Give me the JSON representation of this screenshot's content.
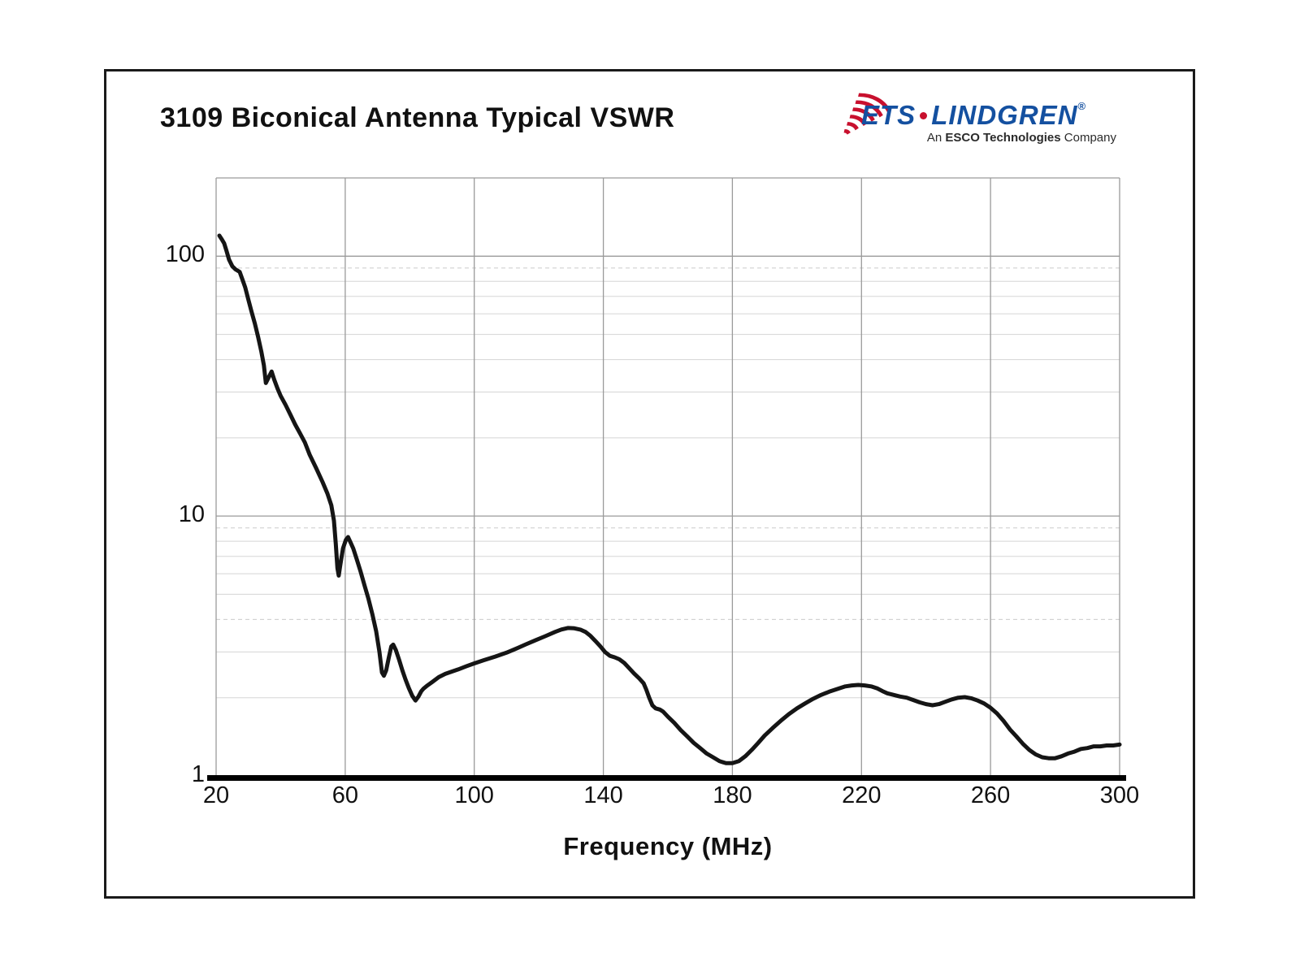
{
  "logo": {
    "brand_primary": "ETS",
    "brand_secondary": "LINDGREN",
    "registered_mark": "®",
    "tagline_prefix": "An ",
    "tagline_bold": "ESCO Technologies",
    "tagline_suffix": " Company",
    "brand_color": "#1450a0",
    "arc_color": "#c8102e"
  },
  "chart_data": {
    "type": "line",
    "title": "3109 Biconical Antenna Typical VSWR",
    "xlabel": "Frequency (MHz)",
    "ylabel": "",
    "xlim": [
      20,
      300
    ],
    "x_ticks": [
      20,
      60,
      100,
      140,
      180,
      220,
      260,
      300
    ],
    "y_scale": "log",
    "ylim": [
      1,
      200
    ],
    "y_ticks": [
      1,
      10,
      100
    ],
    "y_minor": [
      2,
      3,
      4,
      5,
      6,
      7,
      8,
      9,
      20,
      30,
      40,
      50,
      60,
      70,
      80,
      90
    ],
    "y_minor_dashed": [
      4,
      9,
      90
    ],
    "grid": true,
    "legend": "none",
    "line_color": "#151515",
    "series": [
      {
        "name": "Typical VSWR",
        "points": [
          [
            21,
            120
          ],
          [
            21.8,
            116
          ],
          [
            22.5,
            112
          ],
          [
            23.2,
            105
          ],
          [
            24,
            97
          ],
          [
            25,
            91.5
          ],
          [
            26,
            89
          ],
          [
            27.3,
            87
          ],
          [
            28.2,
            81
          ],
          [
            29,
            76
          ],
          [
            30,
            68
          ],
          [
            31,
            61
          ],
          [
            32,
            55
          ],
          [
            33,
            49
          ],
          [
            34,
            43
          ],
          [
            34.8,
            38
          ],
          [
            35.4,
            32.5
          ],
          [
            36.2,
            34
          ],
          [
            37.2,
            36
          ],
          [
            38,
            33.5
          ],
          [
            39,
            31
          ],
          [
            40,
            29
          ],
          [
            41.5,
            26.8
          ],
          [
            43,
            24.6
          ],
          [
            44.5,
            22.5
          ],
          [
            46,
            20.8
          ],
          [
            47.5,
            19.2
          ],
          [
            49,
            17.2
          ],
          [
            51,
            15.3
          ],
          [
            53,
            13.5
          ],
          [
            54.5,
            12.2
          ],
          [
            55.7,
            11
          ],
          [
            56.5,
            9.6
          ],
          [
            57.1,
            7.8
          ],
          [
            57.6,
            6.3
          ],
          [
            58,
            5.9
          ],
          [
            58.5,
            6.5
          ],
          [
            59.3,
            7.5
          ],
          [
            60.2,
            8.1
          ],
          [
            60.9,
            8.3
          ],
          [
            61.7,
            7.9
          ],
          [
            62.5,
            7.5
          ],
          [
            63.6,
            6.8
          ],
          [
            64.8,
            6.1
          ],
          [
            66,
            5.4
          ],
          [
            67.2,
            4.8
          ],
          [
            68.4,
            4.2
          ],
          [
            69.6,
            3.6
          ],
          [
            70.6,
            3.0
          ],
          [
            71.4,
            2.5
          ],
          [
            72,
            2.43
          ],
          [
            72.7,
            2.55
          ],
          [
            73.5,
            2.85
          ],
          [
            74.3,
            3.15
          ],
          [
            74.9,
            3.2
          ],
          [
            75.7,
            3.05
          ],
          [
            76.7,
            2.8
          ],
          [
            77.7,
            2.55
          ],
          [
            78.7,
            2.35
          ],
          [
            79.7,
            2.18
          ],
          [
            80.8,
            2.03
          ],
          [
            81.8,
            1.95
          ],
          [
            82.7,
            2.02
          ],
          [
            83.6,
            2.12
          ],
          [
            84.3,
            2.17
          ],
          [
            85.5,
            2.23
          ],
          [
            87,
            2.3
          ],
          [
            89,
            2.4
          ],
          [
            91,
            2.47
          ],
          [
            93,
            2.52
          ],
          [
            95,
            2.57
          ],
          [
            97.5,
            2.64
          ],
          [
            100,
            2.71
          ],
          [
            103,
            2.79
          ],
          [
            106.5,
            2.88
          ],
          [
            110,
            2.98
          ],
          [
            113,
            3.09
          ],
          [
            116,
            3.21
          ],
          [
            119,
            3.33
          ],
          [
            122,
            3.45
          ],
          [
            125,
            3.58
          ],
          [
            127,
            3.66
          ],
          [
            129,
            3.71
          ],
          [
            131,
            3.7
          ],
          [
            133,
            3.65
          ],
          [
            134.5,
            3.58
          ],
          [
            136,
            3.46
          ],
          [
            137.5,
            3.31
          ],
          [
            139,
            3.16
          ],
          [
            140.5,
            3.0
          ],
          [
            142,
            2.9
          ],
          [
            143.5,
            2.86
          ],
          [
            145,
            2.81
          ],
          [
            146.5,
            2.72
          ],
          [
            148,
            2.6
          ],
          [
            149.5,
            2.48
          ],
          [
            151,
            2.38
          ],
          [
            152.5,
            2.27
          ],
          [
            153.3,
            2.15
          ],
          [
            154.2,
            2.0
          ],
          [
            155.2,
            1.87
          ],
          [
            156.2,
            1.82
          ],
          [
            157.5,
            1.8
          ],
          [
            158.5,
            1.77
          ],
          [
            160,
            1.69
          ],
          [
            162,
            1.6
          ],
          [
            164,
            1.5
          ],
          [
            166,
            1.42
          ],
          [
            168,
            1.34
          ],
          [
            170,
            1.28
          ],
          [
            172,
            1.22
          ],
          [
            174,
            1.18
          ],
          [
            176,
            1.14
          ],
          [
            178,
            1.12
          ],
          [
            180,
            1.12
          ],
          [
            182,
            1.14
          ],
          [
            184,
            1.19
          ],
          [
            186,
            1.26
          ],
          [
            188,
            1.34
          ],
          [
            190,
            1.43
          ],
          [
            192.5,
            1.53
          ],
          [
            195,
            1.63
          ],
          [
            197.5,
            1.73
          ],
          [
            200,
            1.82
          ],
          [
            202.5,
            1.9
          ],
          [
            205,
            1.98
          ],
          [
            207.5,
            2.05
          ],
          [
            210,
            2.11
          ],
          [
            212.5,
            2.16
          ],
          [
            215,
            2.21
          ],
          [
            217,
            2.23
          ],
          [
            219,
            2.24
          ],
          [
            221,
            2.23
          ],
          [
            223,
            2.21
          ],
          [
            225,
            2.17
          ],
          [
            226.5,
            2.12
          ],
          [
            228,
            2.08
          ],
          [
            230,
            2.05
          ],
          [
            232,
            2.02
          ],
          [
            234,
            2.0
          ],
          [
            236,
            1.96
          ],
          [
            238,
            1.92
          ],
          [
            240,
            1.89
          ],
          [
            242,
            1.87
          ],
          [
            244,
            1.89
          ],
          [
            246,
            1.93
          ],
          [
            248,
            1.97
          ],
          [
            250,
            2.0
          ],
          [
            252,
            2.01
          ],
          [
            254,
            1.99
          ],
          [
            256,
            1.95
          ],
          [
            258,
            1.9
          ],
          [
            260,
            1.83
          ],
          [
            262,
            1.74
          ],
          [
            264,
            1.63
          ],
          [
            266,
            1.51
          ],
          [
            268,
            1.42
          ],
          [
            270,
            1.33
          ],
          [
            272,
            1.26
          ],
          [
            274,
            1.21
          ],
          [
            276,
            1.18
          ],
          [
            278,
            1.17
          ],
          [
            280,
            1.17
          ],
          [
            282,
            1.19
          ],
          [
            284,
            1.22
          ],
          [
            286,
            1.24
          ],
          [
            288,
            1.27
          ],
          [
            290,
            1.28
          ],
          [
            292,
            1.3
          ],
          [
            294,
            1.3
          ],
          [
            296,
            1.31
          ],
          [
            298,
            1.31
          ],
          [
            300,
            1.32
          ]
        ]
      }
    ]
  }
}
